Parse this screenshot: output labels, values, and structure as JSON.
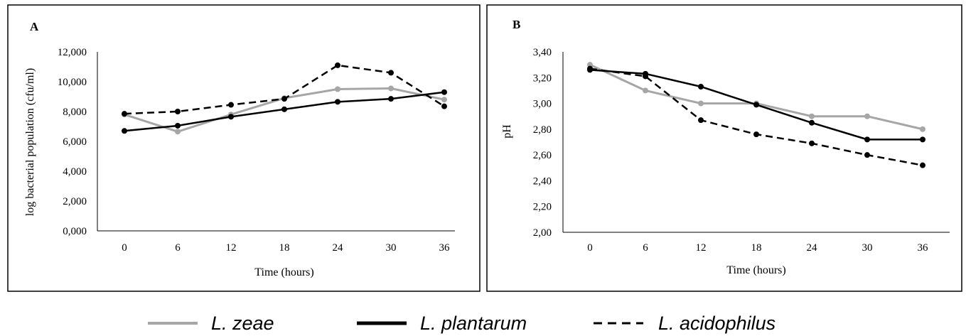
{
  "chart_data": [
    {
      "type": "line",
      "panel_label": "A",
      "xlabel": "Time (hours)",
      "ylabel": "log bacterial population (cfu/ml)",
      "categories": [
        "0",
        "6",
        "12",
        "18",
        "24",
        "30",
        "36"
      ],
      "ylim": [
        0,
        12
      ],
      "y_ticks": [
        "0,000",
        "2,000",
        "4,000",
        "6,000",
        "8,000",
        "10,000",
        "12,000"
      ],
      "grid": false,
      "series": [
        {
          "name": "L. zeae",
          "color": "#a6a6a6",
          "dash": "solid",
          "values": [
            7.8,
            6.65,
            7.8,
            8.9,
            9.5,
            9.55,
            8.8
          ]
        },
        {
          "name": "L. plantarum",
          "color": "#000000",
          "dash": "solid",
          "values": [
            6.7,
            7.05,
            7.65,
            8.15,
            8.65,
            8.85,
            9.3
          ]
        },
        {
          "name": "L. acidophilus",
          "color": "#000000",
          "dash": "dashed",
          "values": [
            7.85,
            8.0,
            8.45,
            8.85,
            11.1,
            10.6,
            8.35
          ]
        }
      ]
    },
    {
      "type": "line",
      "panel_label": "B",
      "xlabel": "Time (hours)",
      "ylabel": "pH",
      "categories": [
        "0",
        "6",
        "12",
        "18",
        "24",
        "30",
        "36"
      ],
      "ylim": [
        2.0,
        3.4
      ],
      "y_ticks": [
        "2,00",
        "2,20",
        "2,40",
        "2,60",
        "2,80",
        "3,00",
        "3,20",
        "3,40"
      ],
      "grid": false,
      "series": [
        {
          "name": "L. zeae",
          "color": "#a6a6a6",
          "dash": "solid",
          "values": [
            3.3,
            3.1,
            3.0,
            3.0,
            2.9,
            2.9,
            2.8
          ]
        },
        {
          "name": "L. plantarum",
          "color": "#000000",
          "dash": "solid",
          "values": [
            3.26,
            3.23,
            3.13,
            2.99,
            2.85,
            2.72,
            2.72
          ]
        },
        {
          "name": "L. acidophilus",
          "color": "#000000",
          "dash": "dashed",
          "values": [
            3.27,
            3.21,
            2.87,
            2.76,
            2.69,
            2.6,
            2.52
          ]
        }
      ]
    }
  ],
  "legend": {
    "placement": "bottom",
    "items": [
      {
        "label": "L. zeae",
        "color": "#a6a6a6",
        "dash": "solid"
      },
      {
        "label": "L. plantarum",
        "color": "#000000",
        "dash": "solid"
      },
      {
        "label": "L. acidophilus",
        "color": "#000000",
        "dash": "dashed"
      }
    ]
  }
}
